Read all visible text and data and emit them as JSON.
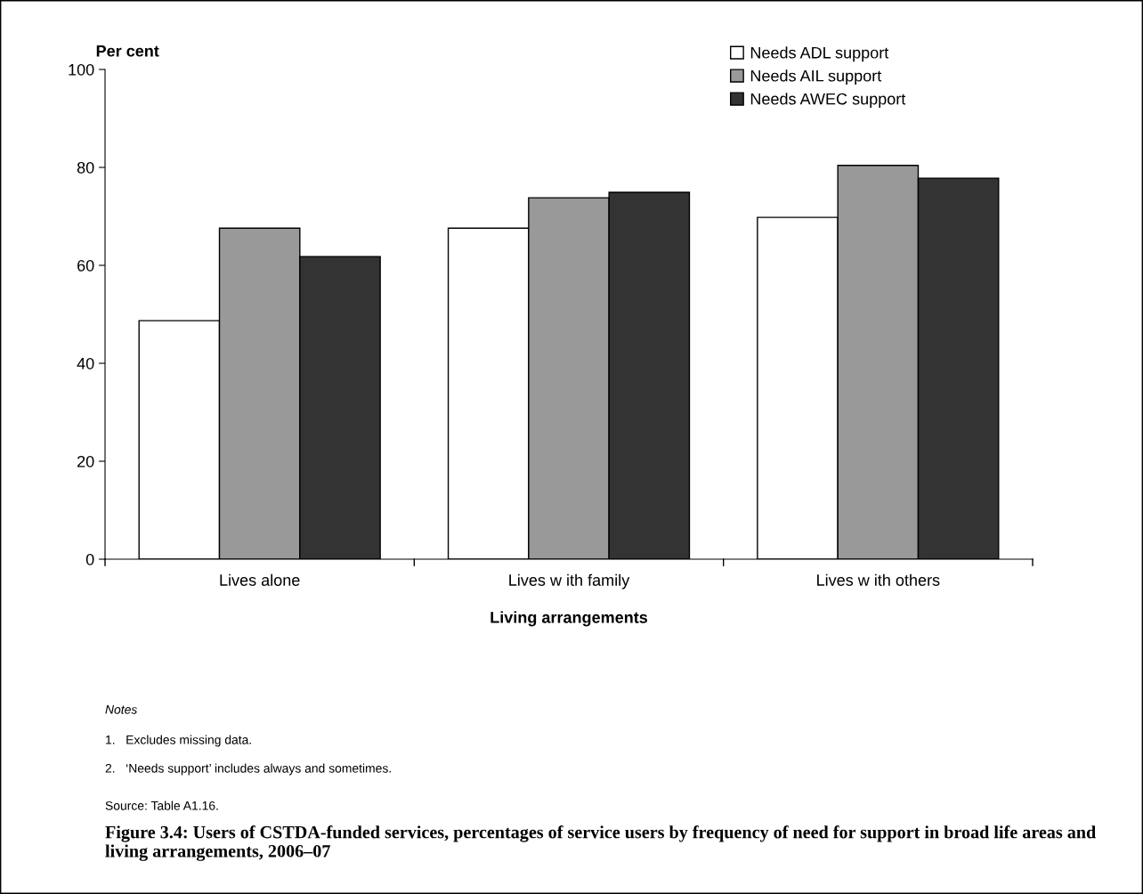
{
  "chart_data": {
    "type": "bar",
    "title": "Figure 3.4: Users of CSTDA-funded services, percentages of service users by frequency of need for support in broad life areas and living arrangements, 2006–07",
    "xlabel": "Living arrangements",
    "ylabel": "Per cent",
    "categories": [
      "Lives alone",
      "Lives w ith family",
      "Lives w ith others"
    ],
    "series": [
      {
        "name": "Needs ADL support",
        "color": "#ffffff",
        "values": [
          48.7,
          67.6,
          69.8
        ]
      },
      {
        "name": "Needs AIL support",
        "color": "#999999",
        "values": [
          67.6,
          73.8,
          80.4
        ]
      },
      {
        "name": "Needs AWEC support",
        "color": "#333333",
        "values": [
          61.8,
          74.9,
          77.8
        ]
      }
    ],
    "ylim": [
      0,
      100
    ],
    "yticks": [
      0,
      20,
      40,
      60,
      80,
      100
    ],
    "grid": false,
    "legend": "top right",
    "annotations": [
      "Notes",
      "1.   Excludes missing data.",
      "2.   ‘Needs support’ includes always and sometimes.",
      "Source: Table A1.16."
    ]
  }
}
